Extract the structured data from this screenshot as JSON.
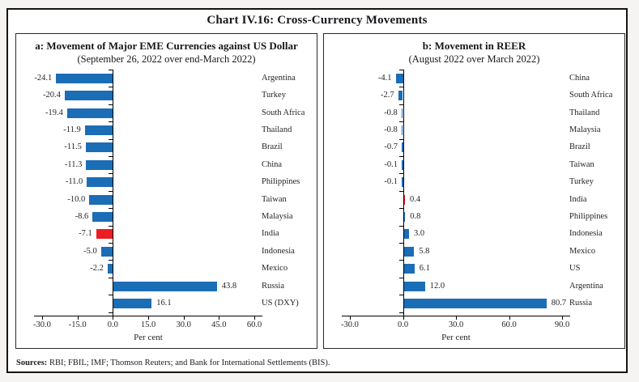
{
  "figure": {
    "title": "Chart IV.16: Cross-Currency Movements",
    "sources_label": "Sources:",
    "sources_text": " RBI; FBIL; IMF; Thomson Reuters; and Bank for International Settlements (BIS)."
  },
  "colors": {
    "bar": "#1b6db6",
    "highlight": "#ea1c24"
  },
  "chart_data": [
    {
      "type": "bar",
      "orientation": "horizontal",
      "title": "a: Movement of Major EME Currencies against US Dollar",
      "subtitle": "(September 26, 2022 over end-March 2022)",
      "xlabel": "Per cent",
      "xlim": [
        -30,
        60
      ],
      "xticks": [
        -30,
        -15,
        0,
        15,
        30,
        45,
        60
      ],
      "grid": false,
      "legend": false,
      "categories": [
        "Argentina",
        "Turkey",
        "South Africa",
        "Thailand",
        "Brazil",
        "China",
        "Philippines",
        "Taiwan",
        "Malaysia",
        "India",
        "Indonesia",
        "Mexico",
        "Russia",
        "US (DXY)"
      ],
      "values": [
        -24.1,
        -20.4,
        -19.4,
        -11.9,
        -11.5,
        -11.3,
        -11.0,
        -10.0,
        -8.6,
        -7.1,
        -5.0,
        -2.2,
        43.8,
        16.1
      ],
      "highlight_category": "India"
    },
    {
      "type": "bar",
      "orientation": "horizontal",
      "title": "b: Movement in REER",
      "subtitle": "(August 2022 over March 2022)",
      "xlabel": "Per cent",
      "xlim": [
        -30,
        90
      ],
      "xticks": [
        -30,
        0,
        30,
        60,
        90
      ],
      "grid": false,
      "legend": false,
      "categories": [
        "China",
        "South Africa",
        "Thailand",
        "Malaysia",
        "Brazil",
        "Taiwan",
        "Turkey",
        "India",
        "Philippines",
        "Indonesia",
        "Mexico",
        "US",
        "Argentina",
        "Russia"
      ],
      "values": [
        -4.1,
        -2.7,
        -0.8,
        -0.8,
        -0.7,
        -0.1,
        -0.1,
        0.4,
        0.8,
        3.0,
        5.8,
        6.1,
        12.0,
        80.7
      ],
      "highlight_category": "India"
    }
  ]
}
